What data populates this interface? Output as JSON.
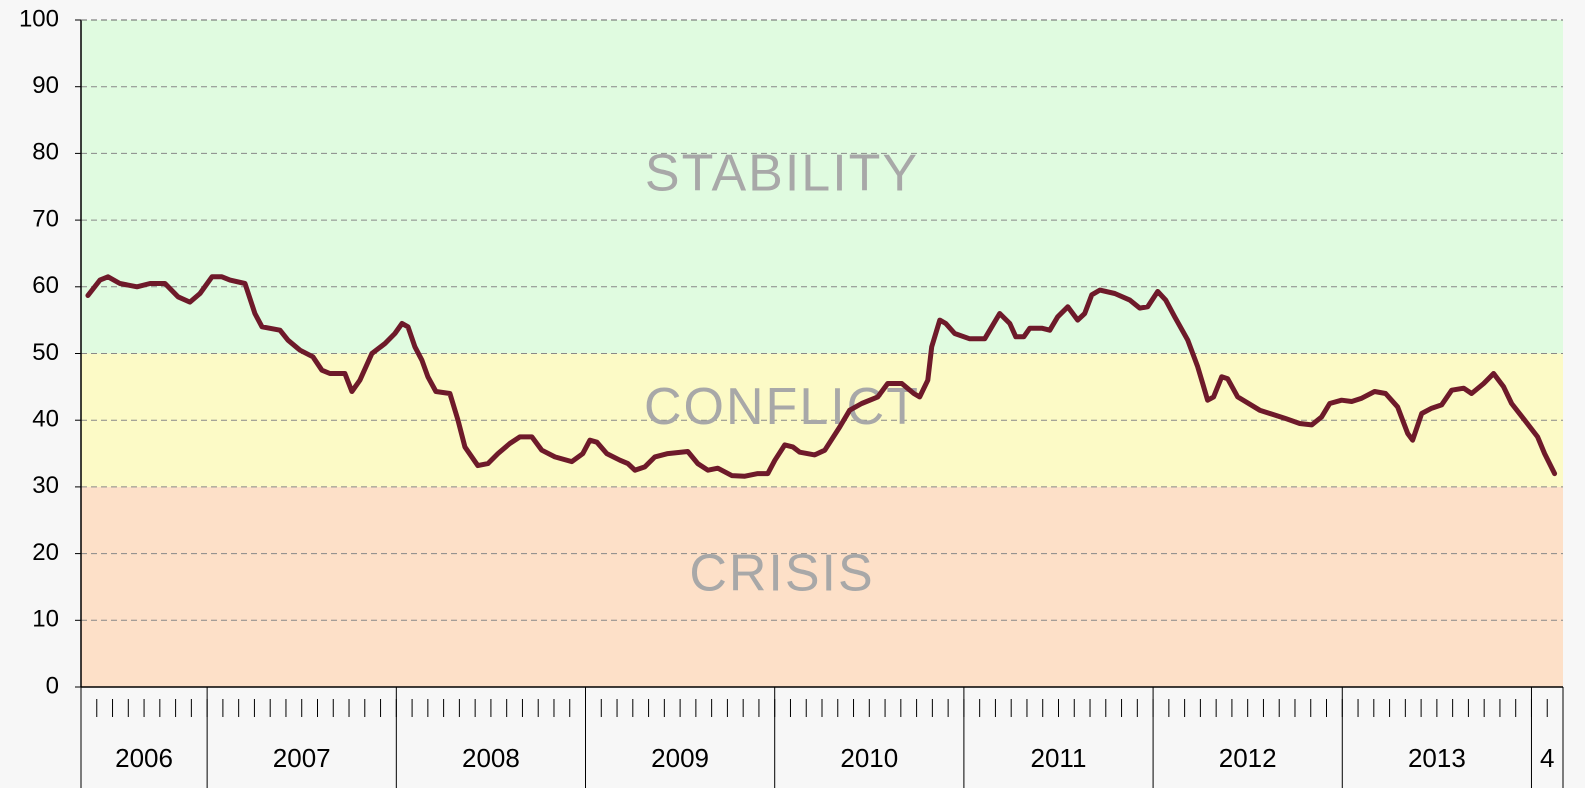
{
  "chart_data": {
    "type": "line",
    "zones": [
      {
        "label": "CRISIS",
        "range": [
          0,
          30
        ],
        "color": "#fde0c8"
      },
      {
        "label": "CONFLICT",
        "range": [
          30,
          50
        ],
        "color": "#fcfac6"
      },
      {
        "label": "STABILITY",
        "range": [
          50,
          100
        ],
        "color": "#e0fbe0"
      }
    ],
    "year_groups": [
      {
        "label": "2006",
        "range": [
          0,
          8
        ]
      },
      {
        "label": "2007",
        "range": [
          8,
          20
        ]
      },
      {
        "label": "2008",
        "range": [
          20,
          32
        ]
      },
      {
        "label": "2009",
        "range": [
          32,
          44
        ]
      },
      {
        "label": "2010",
        "range": [
          44,
          56
        ]
      },
      {
        "label": "2011",
        "range": [
          56,
          68
        ]
      },
      {
        "label": "2012",
        "range": [
          68,
          80
        ]
      },
      {
        "label": "2013",
        "range": [
          80,
          92
        ]
      },
      {
        "label": "4",
        "range": [
          92,
          94
        ]
      }
    ],
    "xlim": [
      0,
      94
    ],
    "xticks": [
      1,
      2,
      3,
      4,
      5,
      6,
      7,
      8,
      9,
      10,
      11,
      12,
      13,
      14,
      15,
      16,
      17,
      18,
      19,
      20,
      21,
      22,
      23,
      24,
      25,
      26,
      27,
      28,
      29,
      30,
      31,
      32,
      33,
      34,
      35,
      36,
      37,
      38,
      39,
      40,
      41,
      42,
      43,
      44,
      45,
      46,
      47,
      48,
      49,
      50,
      51,
      52,
      53,
      54,
      55,
      56,
      57,
      58,
      59,
      60,
      61,
      62,
      63,
      64,
      65,
      66,
      67,
      68,
      69,
      70,
      71,
      72,
      73,
      74,
      75,
      76,
      77,
      78,
      79,
      80,
      81,
      82,
      83,
      84,
      85,
      86,
      87,
      88,
      89,
      90,
      91,
      92,
      93
    ],
    "ylim": [
      0,
      100
    ],
    "yticks": [
      0,
      10,
      20,
      30,
      40,
      50,
      60,
      70,
      80,
      90,
      100
    ],
    "grid": true,
    "series": [
      {
        "color": "#6e1a2a",
        "x": [
          0.44,
          1.2,
          1.71,
          2.47,
          3.55,
          4.38,
          5.33,
          6.15,
          6.91,
          7.55,
          8.31,
          8.94,
          9.45,
          10.4,
          11.03,
          11.48,
          12.62,
          13.13,
          13.89,
          14.71,
          15.28,
          15.79,
          16.74,
          17.18,
          17.69,
          18.45,
          19.28,
          19.91,
          20.36,
          20.74,
          21.18,
          21.62,
          22.0,
          22.51,
          23.4,
          23.91,
          24.35,
          25.17,
          25.81,
          26.44,
          27.2,
          27.84,
          28.6,
          29.23,
          30.06,
          31.13,
          31.83,
          32.28,
          32.72,
          33.35,
          34.18,
          34.69,
          35.13,
          35.76,
          36.4,
          37.22,
          38.49,
          39.12,
          39.76,
          40.39,
          41.28,
          42.11,
          42.93,
          43.56,
          44.01,
          44.64,
          45.15,
          45.59,
          46.54,
          47.18,
          48.13,
          48.76,
          49.52,
          50.54,
          51.17,
          52.06,
          52.82,
          53.2,
          53.71,
          53.96,
          54.47,
          54.85,
          55.42,
          56.37,
          57.32,
          57.77,
          58.27,
          58.91,
          59.29,
          59.8,
          60.18,
          60.94,
          61.45,
          61.95,
          62.59,
          63.22,
          63.66,
          64.11,
          64.62,
          65.57,
          66.52,
          67.15,
          67.66,
          68.29,
          68.8,
          69.37,
          70.2,
          70.83,
          71.15,
          71.46,
          71.84,
          72.35,
          72.73,
          73.37,
          74.76,
          76.35,
          77.3,
          78.06,
          78.69,
          79.2,
          79.96,
          80.6,
          81.23,
          82.05,
          82.75,
          83.51,
          84.15,
          84.46,
          85.04,
          85.67,
          86.3,
          86.94,
          87.7,
          88.2,
          88.97,
          89.6,
          90.23,
          90.74,
          91.57,
          92.39,
          92.83,
          93.47
        ],
        "values": [
          58.7,
          61,
          61.5,
          60.5,
          60,
          60.5,
          60.5,
          58.5,
          57.7,
          59,
          61.5,
          61.5,
          61,
          60.5,
          56,
          54,
          53.5,
          52,
          50.5,
          49.5,
          47.5,
          47,
          47,
          44.3,
          46,
          50,
          51.5,
          53,
          54.5,
          54,
          51,
          49,
          46.5,
          44.3,
          44,
          40,
          36,
          33.2,
          33.5,
          35,
          36.5,
          37.5,
          37.5,
          35.5,
          34.5,
          33.8,
          35,
          37,
          36.7,
          35,
          34,
          33.5,
          32.5,
          33,
          34.5,
          35,
          35.3,
          33.5,
          32.5,
          32.8,
          31.7,
          31.6,
          32,
          32,
          34,
          36.3,
          36,
          35.2,
          34.8,
          35.5,
          39,
          41.5,
          42.5,
          43.5,
          45.5,
          45.5,
          44,
          43.5,
          46,
          51,
          55,
          54.5,
          53,
          52.2,
          52.2,
          54,
          56,
          54.5,
          52.5,
          52.5,
          53.8,
          53.8,
          53.5,
          55.5,
          57,
          55,
          56,
          58.8,
          59.5,
          59,
          58,
          56.8,
          57,
          59.3,
          58,
          55.5,
          52,
          48,
          45.5,
          43,
          43.5,
          46.5,
          46.2,
          43.5,
          41.5,
          40.3,
          39.5,
          39.3,
          40.5,
          42.5,
          43,
          42.8,
          43.3,
          44.3,
          44,
          42,
          38,
          37,
          41,
          41.8,
          42.3,
          44.5,
          44.8,
          44,
          45.5,
          47,
          45,
          42.5,
          40,
          37.5,
          35,
          32
        ]
      }
    ]
  }
}
